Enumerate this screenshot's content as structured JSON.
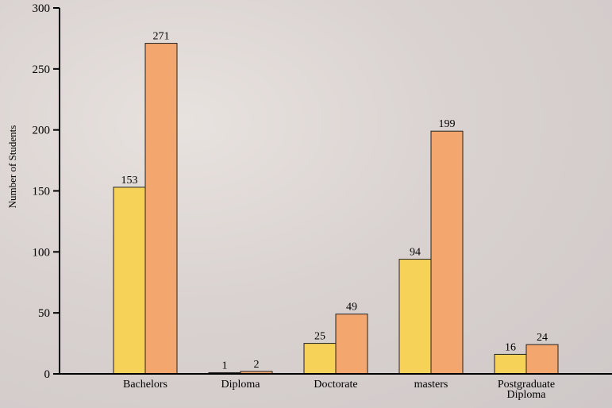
{
  "chart_data": {
    "type": "bar",
    "y_label": "Number of Students",
    "categories": [
      "Bachelors",
      "Diploma",
      "Doctorate",
      "masters",
      "Postgraduate Diploma"
    ],
    "series": [
      {
        "color": "#f6d358",
        "values": [
          153,
          1,
          25,
          94,
          16
        ]
      },
      {
        "color": "#f3a66e",
        "values": [
          271,
          2,
          49,
          199,
          24
        ]
      }
    ],
    "ylim": [
      0,
      300
    ],
    "yticks": [
      0,
      50,
      100,
      150,
      200,
      250,
      300
    ]
  }
}
